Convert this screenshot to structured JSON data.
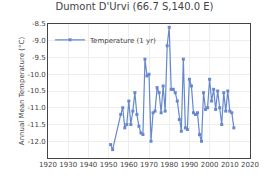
{
  "chart_data": {
    "type": "line",
    "title": "Dumont D'Urvi (66.7 S,140.0 E)",
    "ylabel": "Annual Mean Temperature (°C)",
    "x": [
      1951,
      1952,
      1956,
      1957,
      1958,
      1959,
      1960,
      1961,
      1962,
      1963,
      1964,
      1965,
      1966,
      1967,
      1968,
      1969,
      1970,
      1971,
      1972,
      1973,
      1974,
      1975,
      1976,
      1977,
      1978,
      1979,
      1980,
      1981,
      1982,
      1983,
      1984,
      1985,
      1986,
      1987,
      1988,
      1989,
      1990,
      1991,
      1992,
      1993,
      1994,
      1995,
      1996,
      1997,
      1998,
      1999,
      2000,
      2001,
      2002,
      2003,
      2004,
      2005,
      2006,
      2007,
      2008,
      2009,
      2010,
      2011,
      2012
    ],
    "series": [
      {
        "name": "Temperature (1 yr)",
        "color": "#6688cc",
        "marker": "square",
        "values": [
          -12.1,
          -12.25,
          -11.2,
          -11.0,
          -11.6,
          -11.5,
          -10.8,
          -11.5,
          -11.1,
          -10.55,
          -11.2,
          -11.55,
          -11.75,
          -11.8,
          -9.55,
          -10.05,
          -10.0,
          -12.0,
          -11.15,
          -11.1,
          -10.4,
          -10.55,
          -11.15,
          -10.35,
          -11.1,
          -9.15,
          -8.6,
          -10.45,
          -10.45,
          -10.55,
          -10.8,
          -11.35,
          -11.7,
          -9.55,
          -11.6,
          -11.65,
          -10.15,
          -10.35,
          -11.15,
          -11.2,
          -11.15,
          -11.8,
          -12.0,
          -10.55,
          -11.05,
          -11.0,
          -10.15,
          -10.8,
          -10.45,
          -11.05,
          -10.5,
          -11.0,
          -11.5,
          -10.55,
          -11.1,
          -10.5,
          -11.1,
          -11.15,
          -11.6
        ]
      }
    ],
    "xlim": [
      1920,
      2020
    ],
    "xticks": [
      1920,
      1930,
      1940,
      1950,
      1960,
      1970,
      1980,
      1990,
      2000,
      2010,
      2020
    ],
    "ylim": [
      -12.5,
      -8.5
    ],
    "yticks": [
      {
        "value": -12.0,
        "label": "-12.0"
      },
      -11.5,
      {
        "value": -11.0,
        "label": "-11.0"
      },
      -10.5,
      {
        "value": -10.0,
        "label": "-10.0"
      },
      -9.5,
      {
        "value": -9.0,
        "label": "-9.0"
      },
      -8.5
    ],
    "legend": "upper left"
  }
}
